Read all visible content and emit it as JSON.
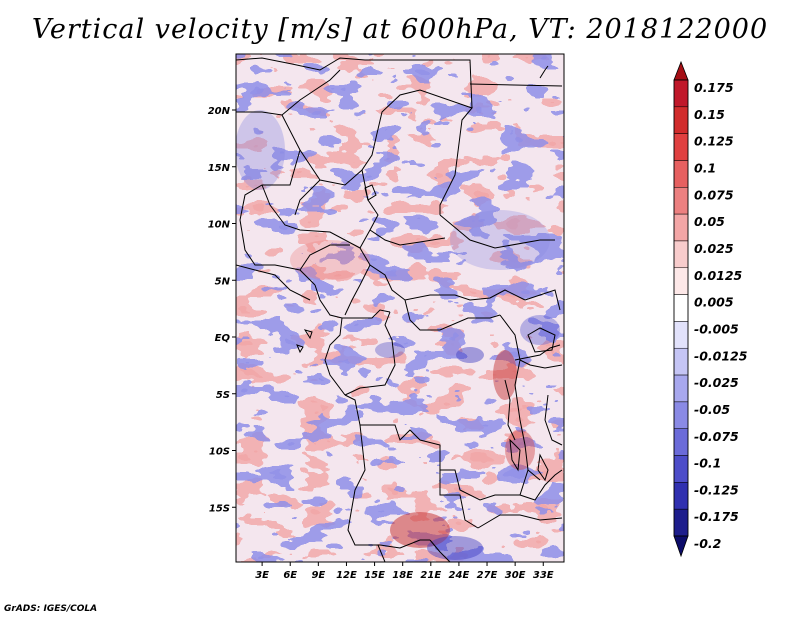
{
  "title": "Vertical velocity [m/s] at 600hPa, VT: 2018122000",
  "credit": "GrADS: IGES/COLA",
  "map": {
    "lat_labels": [
      "20N",
      "15N",
      "10N",
      "5N",
      "EQ",
      "5S",
      "10S",
      "15S"
    ],
    "lat_values": [
      20,
      15,
      10,
      5,
      0,
      -5,
      -10,
      -15
    ],
    "lon_labels": [
      "3E",
      "6E",
      "9E",
      "12E",
      "15E",
      "18E",
      "21E",
      "24E",
      "27E",
      "30E",
      "33E"
    ],
    "lon_values": [
      3,
      6,
      9,
      12,
      15,
      18,
      21,
      24,
      27,
      30,
      33
    ],
    "lon_range": [
      0,
      35
    ],
    "lat_range": [
      -20,
      25
    ]
  },
  "colorbar": {
    "labels": [
      "0.175",
      "0.15",
      "0.125",
      "0.1",
      "0.075",
      "0.05",
      "0.025",
      "0.0125",
      "0.005",
      "-0.005",
      "-0.0125",
      "-0.025",
      "-0.05",
      "-0.075",
      "-0.1",
      "-0.125",
      "-0.175",
      "-0.2"
    ],
    "colors": [
      "#a50f15",
      "#c0182a",
      "#d12c2c",
      "#e04040",
      "#e66060",
      "#ec8080",
      "#f3a6a6",
      "#f8cccc",
      "#fde8e8",
      "#ffffff",
      "#e2e2fb",
      "#c5c5f5",
      "#a8a8ee",
      "#8a8ae5",
      "#6b6bd9",
      "#4d4dc9",
      "#3030b0",
      "#1d1d8c",
      "#0c0c6a"
    ]
  }
}
